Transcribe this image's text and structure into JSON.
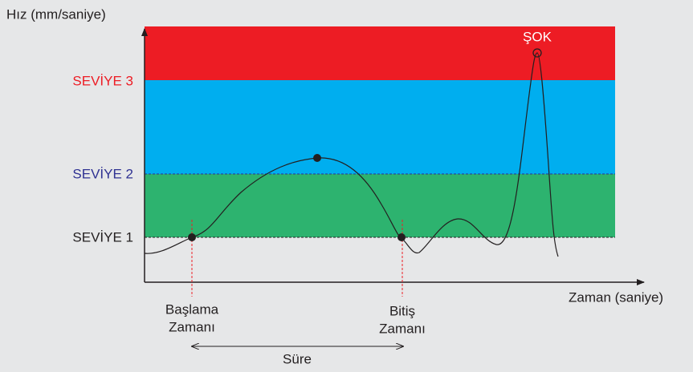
{
  "y_axis_label": "Hız (mm/saniye)",
  "x_axis_label": "Zaman (saniye)",
  "levels": [
    "SEVİYE 3",
    "SEVİYE 2",
    "SEVİYE 1"
  ],
  "shock_label": "ŞOK",
  "start_label": [
    "Başlama",
    "Zamanı"
  ],
  "end_label": [
    "Bitiş",
    "Zamanı"
  ],
  "duration_label": "Süre"
}
